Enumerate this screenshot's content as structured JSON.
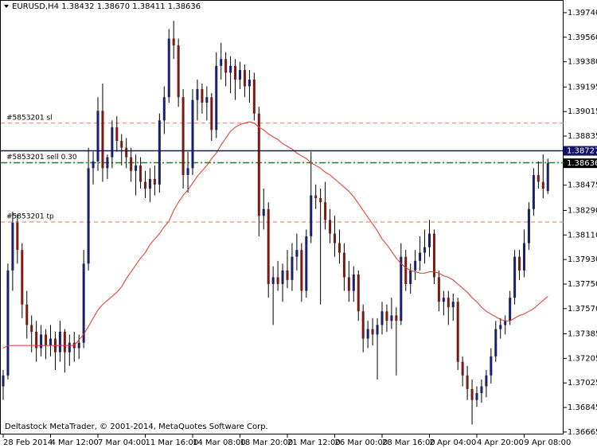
{
  "chart_data": {
    "type": "candlestick",
    "header": "EURUSD,H4  1.38432 1.38670 1.38411 1.38636",
    "footer": "Deltastock MetaTrader, © 2001-2014, MetaQuotes Software Corp.",
    "categories": [
      "28 Feb 2014",
      null,
      null,
      null,
      null,
      null,
      null,
      null,
      null,
      null,
      "4 Mar 12:00",
      null,
      null,
      null,
      null,
      null,
      null,
      null,
      null,
      null,
      "7 Mar 04:00",
      null,
      null,
      null,
      null,
      null,
      null,
      null,
      null,
      null,
      "11 Mar 16:00",
      null,
      null,
      null,
      null,
      null,
      null,
      null,
      null,
      null,
      "14 Mar 08:00",
      null,
      null,
      null,
      null,
      null,
      null,
      null,
      null,
      null,
      "18 Mar 20:00",
      null,
      null,
      null,
      null,
      null,
      null,
      null,
      null,
      null,
      "21 Mar 12:00",
      null,
      null,
      null,
      null,
      null,
      null,
      null,
      null,
      null,
      "26 Mar 00:00",
      null,
      null,
      null,
      null,
      null,
      null,
      null,
      null,
      null,
      "28 Mar 16:00",
      null,
      null,
      null,
      null,
      null,
      null,
      null,
      null,
      null,
      "2 Apr 04:00",
      null,
      null,
      null,
      null,
      null,
      null,
      null,
      null,
      null,
      "4 Apr 20:00",
      null,
      null,
      null,
      null,
      null,
      null,
      null,
      null,
      null,
      "9 Apr 08:00",
      null,
      null,
      null,
      null,
      null
    ],
    "up_color": "#1a1f6e",
    "down_color": "#7a1a14",
    "wick_color": "#000000",
    "open": [
      1.37,
      1.3708,
      1.3785,
      1.382,
      1.38,
      1.376,
      1.3745,
      1.374,
      1.3728,
      1.3738,
      1.373,
      1.3735,
      1.3725,
      1.374,
      1.3725,
      1.3732,
      1.3728,
      1.3732,
      1.379,
      1.386,
      1.3865,
      1.3902,
      1.386,
      1.3868,
      1.389,
      1.388,
      1.3875,
      1.3868,
      1.3858,
      1.3862,
      1.385,
      1.3845,
      1.3852,
      1.3848,
      1.3895,
      1.3912,
      1.3955,
      1.395,
      1.3912,
      1.3855,
      1.386,
      1.391,
      1.3918,
      1.3908,
      1.3912,
      1.3888,
      1.3935,
      1.394,
      1.393,
      1.3935,
      1.3925,
      1.3932,
      1.392,
      1.3925,
      1.39,
      1.3825,
      1.383,
      1.3775,
      1.378,
      1.3775,
      1.3785,
      1.3778,
      1.3795,
      1.38,
      1.377,
      1.381,
      1.384,
      1.3838,
      1.3835,
      1.3822,
      1.3812,
      1.3805,
      1.3798,
      1.378,
      1.377,
      1.3782,
      1.3755,
      1.3735,
      1.3742,
      1.3738,
      1.3745,
      1.3755,
      1.3748,
      1.3752,
      1.3748,
      1.3795,
      1.3775,
      1.3785,
      1.3792,
      1.3798,
      1.3802,
      1.3812,
      1.378,
      1.3762,
      1.3765,
      1.3758,
      1.3762,
      1.3718,
      1.3708,
      1.3698,
      1.369,
      1.3695,
      1.37,
      1.3708,
      1.3722,
      1.3742,
      1.3745,
      1.3748,
      1.3765,
      1.3795,
      1.3785,
      1.3805,
      1.383,
      1.3855,
      1.385,
      1.38432
    ],
    "high": [
      1.3712,
      1.379,
      1.3828,
      1.3826,
      1.3805,
      1.377,
      1.3752,
      1.3748,
      1.3745,
      1.3742,
      1.3745,
      1.374,
      1.3748,
      1.3742,
      1.3738,
      1.374,
      1.3738,
      1.38,
      1.3875,
      1.3872,
      1.3912,
      1.3922,
      1.387,
      1.3895,
      1.3898,
      1.3885,
      1.3882,
      1.3875,
      1.387,
      1.3868,
      1.3858,
      1.386,
      1.3862,
      1.39,
      1.392,
      1.3962,
      1.3968,
      1.3955,
      1.3918,
      1.3872,
      1.3918,
      1.3925,
      1.3922,
      1.392,
      1.3915,
      1.3945,
      1.3952,
      1.3945,
      1.3942,
      1.394,
      1.3938,
      1.3936,
      1.3932,
      1.393,
      1.3905,
      1.3845,
      1.3835,
      1.3788,
      1.3792,
      1.379,
      1.38,
      1.3805,
      1.3812,
      1.3805,
      1.3815,
      1.3872,
      1.3848,
      1.3845,
      1.385,
      1.383,
      1.3825,
      1.3815,
      1.3805,
      1.3792,
      1.3788,
      1.3785,
      1.376,
      1.3748,
      1.375,
      1.375,
      1.3762,
      1.376,
      1.3765,
      1.3758,
      1.3805,
      1.38,
      1.379,
      1.38,
      1.381,
      1.3815,
      1.3822,
      1.3815,
      1.3785,
      1.377,
      1.377,
      1.3768,
      1.3765,
      1.3722,
      1.3715,
      1.3705,
      1.37,
      1.3705,
      1.3712,
      1.3728,
      1.3748,
      1.375,
      1.3752,
      1.377,
      1.38,
      1.38,
      1.3815,
      1.3835,
      1.386,
      1.3865,
      1.387,
      1.3867
    ],
    "low": [
      1.369,
      1.3705,
      1.377,
      1.379,
      1.375,
      1.3735,
      1.3725,
      1.3718,
      1.3722,
      1.372,
      1.3722,
      1.3712,
      1.3718,
      1.371,
      1.3715,
      1.3718,
      1.372,
      1.3728,
      1.3785,
      1.3848,
      1.3858,
      1.385,
      1.3852,
      1.386,
      1.3872,
      1.3862,
      1.386,
      1.385,
      1.384,
      1.3845,
      1.3838,
      1.3835,
      1.384,
      1.3842,
      1.3885,
      1.3908,
      1.394,
      1.3905,
      1.3845,
      1.3842,
      1.3855,
      1.3895,
      1.39,
      1.3895,
      1.388,
      1.3882,
      1.3925,
      1.392,
      1.3915,
      1.391,
      1.3918,
      1.3912,
      1.3908,
      1.3895,
      1.381,
      1.3815,
      1.3765,
      1.3745,
      1.377,
      1.3762,
      1.3772,
      1.377,
      1.3785,
      1.3762,
      1.3765,
      1.3805,
      1.383,
      1.376,
      1.3815,
      1.3805,
      1.3795,
      1.379,
      1.377,
      1.3762,
      1.3762,
      1.3748,
      1.3725,
      1.3728,
      1.373,
      1.3705,
      1.3738,
      1.374,
      1.3742,
      1.3708,
      1.3745,
      1.377,
      1.3768,
      1.3778,
      1.3785,
      1.379,
      1.3795,
      1.3775,
      1.3755,
      1.3752,
      1.3745,
      1.3748,
      1.3712,
      1.37,
      1.369,
      1.3672,
      1.3685,
      1.3688,
      1.3692,
      1.3702,
      1.3718,
      1.3735,
      1.3738,
      1.3745,
      1.376,
      1.3778,
      1.378,
      1.38,
      1.3825,
      1.3845,
      1.3838,
      1.38411
    ],
    "close": [
      1.3708,
      1.3785,
      1.382,
      1.38,
      1.376,
      1.3745,
      1.374,
      1.3728,
      1.3738,
      1.373,
      1.3735,
      1.3725,
      1.374,
      1.3725,
      1.3732,
      1.3728,
      1.3732,
      1.379,
      1.386,
      1.3865,
      1.3902,
      1.386,
      1.3868,
      1.389,
      1.388,
      1.3875,
      1.3868,
      1.3858,
      1.3862,
      1.385,
      1.3845,
      1.3852,
      1.3848,
      1.3895,
      1.3912,
      1.3955,
      1.395,
      1.3912,
      1.3855,
      1.386,
      1.391,
      1.3918,
      1.3908,
      1.3912,
      1.3888,
      1.3935,
      1.394,
      1.393,
      1.3935,
      1.3925,
      1.3932,
      1.392,
      1.3925,
      1.39,
      1.3825,
      1.383,
      1.3775,
      1.378,
      1.3775,
      1.3785,
      1.3778,
      1.3795,
      1.38,
      1.377,
      1.381,
      1.384,
      1.3838,
      1.3835,
      1.3822,
      1.3812,
      1.3805,
      1.3798,
      1.378,
      1.377,
      1.3782,
      1.3755,
      1.3735,
      1.3742,
      1.3738,
      1.3745,
      1.3755,
      1.3748,
      1.3752,
      1.3748,
      1.3795,
      1.3775,
      1.3785,
      1.3792,
      1.3798,
      1.3802,
      1.3812,
      1.378,
      1.3762,
      1.3765,
      1.3758,
      1.3762,
      1.3718,
      1.3708,
      1.3698,
      1.369,
      1.3695,
      1.37,
      1.3708,
      1.3722,
      1.3742,
      1.3745,
      1.3748,
      1.3765,
      1.3795,
      1.3785,
      1.3805,
      1.383,
      1.3855,
      1.385,
      1.3845,
      1.38636
    ],
    "moving_average": {
      "color": "#e8302a",
      "values": [
        1.3728,
        1.373,
        1.373,
        1.373,
        1.373,
        1.373,
        1.373,
        1.373,
        1.373,
        1.373,
        1.373,
        1.373,
        1.373,
        1.373,
        1.373,
        1.373,
        1.3734,
        1.3738,
        1.3744,
        1.375,
        1.3756,
        1.376,
        1.3763,
        1.3766,
        1.3769,
        1.3773,
        1.3779,
        1.3784,
        1.3789,
        1.3794,
        1.3798,
        1.3804,
        1.3808,
        1.3812,
        1.3817,
        1.3821,
        1.3829,
        1.3835,
        1.384,
        1.3844,
        1.3849,
        1.3854,
        1.3858,
        1.3862,
        1.3867,
        1.3871,
        1.3877,
        1.3882,
        1.3887,
        1.389,
        1.3892,
        1.3893,
        1.3894,
        1.3893,
        1.389,
        1.3888,
        1.3885,
        1.3883,
        1.3881,
        1.3878,
        1.3876,
        1.3874,
        1.3871,
        1.3869,
        1.3867,
        1.3864,
        1.3862,
        1.386,
        1.3857,
        1.3855,
        1.3852,
        1.3849,
        1.3846,
        1.3843,
        1.3839,
        1.3834,
        1.3829,
        1.3824,
        1.3819,
        1.3814,
        1.3808,
        1.3804,
        1.3799,
        1.3794,
        1.379,
        1.3787,
        1.3785,
        1.3784,
        1.3783,
        1.3783,
        1.3784,
        1.3784,
        1.3783,
        1.3781,
        1.378,
        1.3778,
        1.3775,
        1.3772,
        1.3769,
        1.3765,
        1.3762,
        1.3758,
        1.3755,
        1.3753,
        1.3751,
        1.3749,
        1.3748,
        1.3748,
        1.375,
        1.3752,
        1.3753,
        1.3755,
        1.3757,
        1.376,
        1.3763,
        1.3766
      ]
    },
    "levels": [
      {
        "name": "#5853201 sl",
        "value": 1.3893,
        "color": "#e8734a",
        "style": "dash"
      },
      {
        "name": "#5853201 sell 0.30",
        "value": 1.3864,
        "color": "#118811",
        "style": "dashdot"
      },
      {
        "name": "#5853201 tp",
        "value": 1.38205,
        "color": "#e8734a",
        "style": "dash"
      }
    ],
    "price_lines": [
      {
        "value": 1.38727,
        "color": "#141466",
        "line": true
      },
      {
        "value": 1.38636,
        "color": "#000000",
        "line": false
      }
    ],
    "ylim": [
      1.36647,
      1.39833
    ],
    "yticks": [
      {
        "value": 1.3974,
        "label": "1.39740"
      },
      {
        "value": 1.3956,
        "label": "1.39560"
      },
      {
        "value": 1.3938,
        "label": "1.39380"
      },
      1.39195,
      {
        "value": 1.39015,
        "label": "1.39015"
      },
      1.38835,
      1.38475,
      {
        "value": 1.3829,
        "label": "1.38290"
      },
      {
        "value": 1.3811,
        "label": "1.38110"
      },
      {
        "value": 1.3793,
        "label": "1.37930"
      },
      {
        "value": 1.3775,
        "label": "1.37750"
      },
      {
        "value": 1.3757,
        "label": "1.37570"
      },
      1.37385,
      1.37205,
      1.37025,
      1.36845,
      1.36665
    ]
  }
}
